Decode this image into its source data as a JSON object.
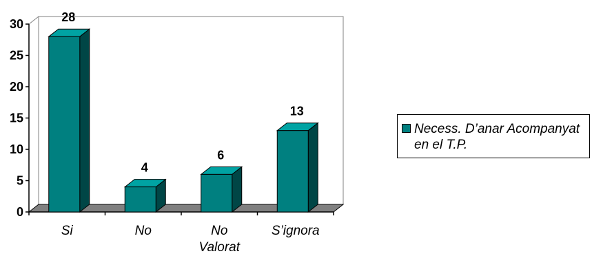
{
  "chart_data": {
    "type": "bar",
    "style": "3d",
    "title": "",
    "xlabel": "",
    "ylabel": "",
    "categories": [
      "Si",
      "No",
      "No Valorat",
      "S’ignora"
    ],
    "series": [
      {
        "name": "Necess. D’anar Acompanyat en el T.P.",
        "values": [
          28,
          4,
          6,
          13
        ]
      }
    ],
    "ylim": [
      0,
      30
    ],
    "yticks": [
      0,
      5,
      10,
      15,
      20,
      25,
      30
    ],
    "data_labels": [
      "28",
      "4",
      "6",
      "13"
    ],
    "grid": false,
    "legend_position": "right",
    "colors": {
      "bar_front": "#008080",
      "bar_side": "#004646",
      "bar_top": "#00a3a3",
      "floor": "#808080"
    }
  },
  "legend": {
    "label": "Necess. D’anar Acompanyat en el T.P."
  }
}
